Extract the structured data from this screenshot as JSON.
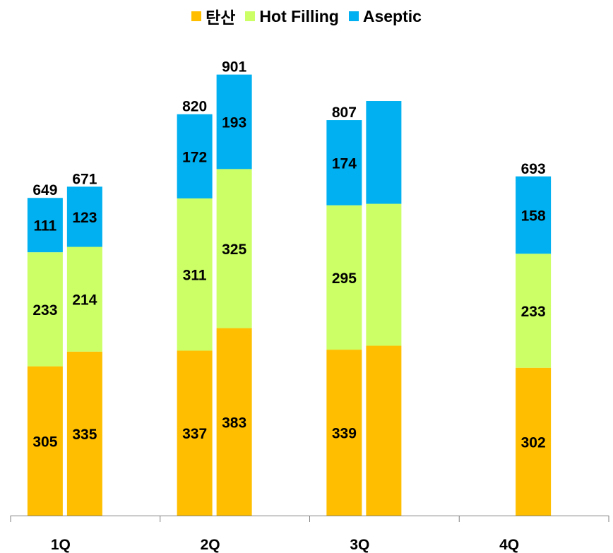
{
  "chart_data": {
    "type": "bar",
    "stacked": true,
    "categories": [
      "1Q",
      "2Q",
      "3Q",
      "4Q"
    ],
    "legend_position": "top-center",
    "series": [
      {
        "name": "탄산",
        "color": "#FFBF00"
      },
      {
        "name": "Hot Filling",
        "color": "#CCFF66"
      },
      {
        "name": "Aseptic",
        "color": "#00B0F0"
      }
    ],
    "bars": [
      {
        "category": "1Q",
        "slot": "left",
        "values": [
          305,
          233,
          111
        ],
        "total": 649,
        "labels": [
          "305",
          "233",
          "111"
        ],
        "total_label": "649"
      },
      {
        "category": "1Q",
        "slot": "right",
        "values": [
          335,
          214,
          123
        ],
        "total": 671,
        "labels": [
          "335",
          "214",
          "123"
        ],
        "total_label": "671"
      },
      {
        "category": "2Q",
        "slot": "left",
        "values": [
          337,
          311,
          172
        ],
        "total": 820,
        "labels": [
          "337",
          "311",
          "172"
        ],
        "total_label": "820"
      },
      {
        "category": "2Q",
        "slot": "right",
        "values": [
          383,
          325,
          193
        ],
        "total": 901,
        "labels": [
          "383",
          "325",
          "193"
        ],
        "total_label": "901"
      },
      {
        "category": "3Q",
        "slot": "left",
        "values": [
          339,
          295,
          174
        ],
        "total": 807,
        "labels": [
          "339",
          "295",
          "174"
        ],
        "total_label": "807"
      },
      {
        "category": "3Q",
        "slot": "right",
        "values": [
          347,
          290,
          210
        ],
        "total": null,
        "labels": [
          "",
          "",
          ""
        ],
        "total_label": ""
      },
      {
        "category": "4Q",
        "slot": "right",
        "values": [
          302,
          233,
          158
        ],
        "total": 693,
        "labels": [
          "302",
          "233",
          "158"
        ],
        "total_label": "693"
      }
    ],
    "ylim": [
      0,
      1000
    ],
    "grid": false,
    "title": "",
    "xlabel": "",
    "ylabel": ""
  }
}
